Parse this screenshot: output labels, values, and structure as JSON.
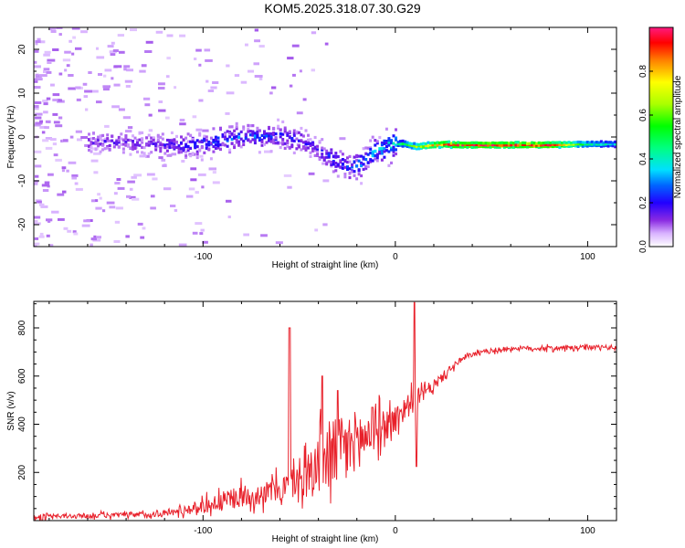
{
  "title": "KOM5.2025.318.07.30.G29",
  "colors": {
    "line": "#e8202a",
    "frame": "#000000",
    "background": "#ffffff"
  },
  "chart_data": [
    {
      "type": "heatmap",
      "xlabel": "Height of straight line (km)",
      "ylabel": "Frequency (Hz)",
      "xlim": [
        -188,
        115
      ],
      "ylim": [
        -25,
        25
      ],
      "xticks": [
        -100,
        0,
        100
      ],
      "yticks": [
        -20,
        -10,
        0,
        10,
        20
      ],
      "ridge": {
        "description_points_x": [
          -150,
          -130,
          -110,
          -95,
          -80,
          -65,
          -50,
          -40,
          -32,
          -25,
          -18,
          -10,
          -5,
          0,
          5,
          10,
          15,
          20,
          25,
          30,
          50,
          80,
          100,
          115
        ],
        "frequency_y": [
          -1,
          -1.5,
          -2,
          -1,
          0,
          0.5,
          -1,
          -3,
          -5.5,
          -7,
          -6,
          -3,
          -2,
          -1.5,
          -1.6,
          -2.2,
          -2.0,
          -1.8,
          -1.6,
          -1.8,
          -1.8,
          -1.8,
          -1.6,
          -1.6
        ],
        "amplitude": [
          0.15,
          0.15,
          0.2,
          0.25,
          0.25,
          0.25,
          0.2,
          0.2,
          0.25,
          0.25,
          0.3,
          0.35,
          0.4,
          0.45,
          0.55,
          0.7,
          0.8,
          0.9,
          0.95,
          1.0,
          1.0,
          1.0,
          0.5,
          0.4
        ]
      },
      "colorbar": {
        "label": "Normalized spectral amplitude",
        "ticks": [
          0.0,
          0.2,
          0.4,
          0.6,
          0.8
        ],
        "tick_labels": [
          "0.0",
          "0.2",
          "0.4",
          "0.6",
          "0.8"
        ],
        "range": [
          0,
          1
        ]
      }
    },
    {
      "type": "line",
      "xlabel": "Height of straight line (km)",
      "ylabel": "SNR (v/v)",
      "xlim": [
        -188,
        115
      ],
      "ylim": [
        0,
        910
      ],
      "xticks": [
        -100,
        0,
        100
      ],
      "yticks": [
        200,
        400,
        600,
        800
      ],
      "series": [
        {
          "name": "SNR",
          "envelope_x": [
            -188,
            -160,
            -130,
            -115,
            -100,
            -90,
            -80,
            -70,
            -60,
            -50,
            -40,
            -35,
            -30,
            -25,
            -20,
            -15,
            -10,
            -5,
            0,
            5,
            10,
            15,
            20,
            25,
            30,
            35,
            40,
            50,
            60,
            80,
            100,
            115
          ],
          "envelope_y": [
            15,
            20,
            25,
            35,
            60,
            80,
            100,
            110,
            130,
            170,
            230,
            260,
            280,
            300,
            340,
            350,
            380,
            400,
            420,
            470,
            500,
            530,
            560,
            600,
            640,
            670,
            690,
            705,
            715,
            715,
            718,
            720
          ],
          "noise_amplitude": [
            10,
            10,
            12,
            15,
            30,
            40,
            45,
            45,
            55,
            70,
            130,
            150,
            150,
            140,
            120,
            100,
            80,
            70,
            60,
            55,
            45,
            30,
            25,
            20,
            15,
            12,
            10,
            10,
            10,
            10,
            10,
            10
          ],
          "peaks": [
            {
              "x": -55,
              "y": 800
            },
            {
              "x": -38,
              "y": 600
            },
            {
              "x": -30,
              "y": 540
            },
            {
              "x": -12,
              "y": 470
            },
            {
              "x": 10,
              "y": 905
            },
            {
              "x": 11,
              "y": 225
            }
          ]
        }
      ]
    }
  ]
}
